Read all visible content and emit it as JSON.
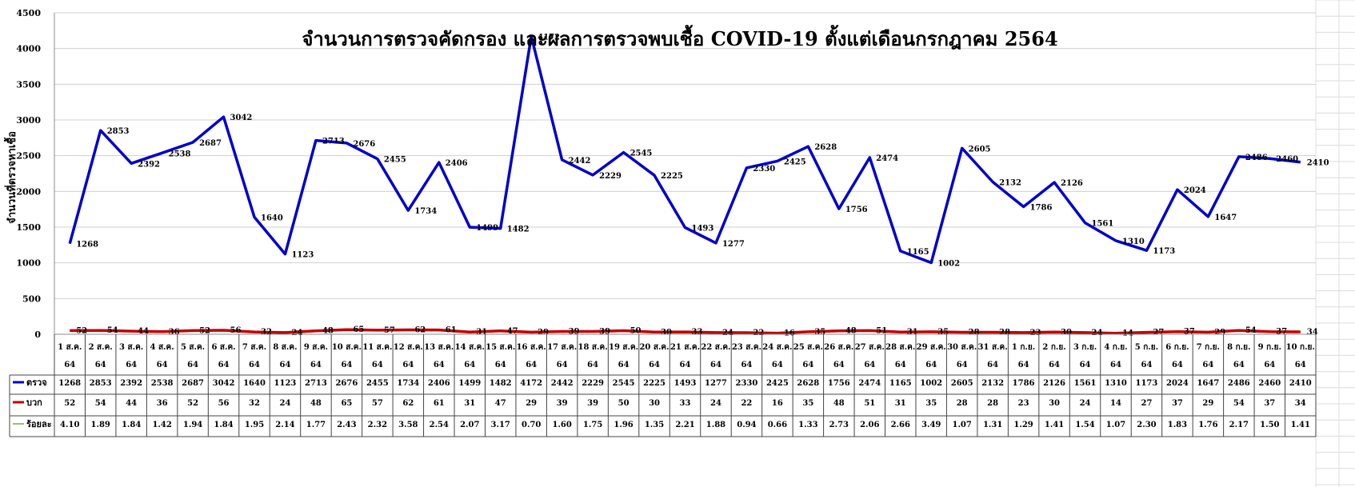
{
  "chart_data": {
    "type": "line",
    "title": "จำนวนการตรวจคัดกรอง และผลการตรวจพบเชื้อ COVID-19 ตั้งแต่เดือนกรกฎาคม 2564",
    "ylabel": "จำนวนที่ตรวจหาเชื้อ",
    "ylim": [
      0,
      4500
    ],
    "yticks": [
      0,
      500,
      1000,
      1500,
      2000,
      2500,
      3000,
      3500,
      4000,
      4500
    ],
    "grid": true,
    "legend": "data-table",
    "categories": [
      [
        "1 ส.ค.",
        "64"
      ],
      [
        "2 ส.ค.",
        "64"
      ],
      [
        "3 ส.ค.",
        "64"
      ],
      [
        "4 ส.ค.",
        "64"
      ],
      [
        "5 ส.ค.",
        "64"
      ],
      [
        "6 ส.ค.",
        "64"
      ],
      [
        "7 ส.ค.",
        "64"
      ],
      [
        "8 ส.ค.",
        "64"
      ],
      [
        "9 ส.ค.",
        "64"
      ],
      [
        "10 ส.ค.",
        "64"
      ],
      [
        "11 ส.ค.",
        "64"
      ],
      [
        "12 ส.ค.",
        "64"
      ],
      [
        "13 ส.ค.",
        "64"
      ],
      [
        "14 ส.ค.",
        "64"
      ],
      [
        "15 ส.ค.",
        "64"
      ],
      [
        "16 ส.ค.",
        "64"
      ],
      [
        "17 ส.ค.",
        "64"
      ],
      [
        "18 ส.ค.",
        "64"
      ],
      [
        "19 ส.ค.",
        "64"
      ],
      [
        "20 ส.ค.",
        "64"
      ],
      [
        "21 ส.ค.",
        "64"
      ],
      [
        "22 ส.ค.",
        "64"
      ],
      [
        "23 ส.ค.",
        "64"
      ],
      [
        "24 ส.ค.",
        "64"
      ],
      [
        "25 ส.ค.",
        "64"
      ],
      [
        "26 ส.ค.",
        "64"
      ],
      [
        "27 ส.ค.",
        "64"
      ],
      [
        "28 ส.ค.",
        "64"
      ],
      [
        "29 ส.ค.",
        "64"
      ],
      [
        "30 ส.ค.",
        "64"
      ],
      [
        "31 ส.ค.",
        "64"
      ],
      [
        "1 ก.ย.",
        "64"
      ],
      [
        "2 ก.ย.",
        "64"
      ],
      [
        "3 ก.ย.",
        "64"
      ],
      [
        "4 ก.ย.",
        "64"
      ],
      [
        "5 ก.ย.",
        "64"
      ],
      [
        "6 ก.ย.",
        "64"
      ],
      [
        "7 ก.ย.",
        "64"
      ],
      [
        "8 ก.ย.",
        "64"
      ],
      [
        "9 ก.ย.",
        "64"
      ],
      [
        "10 ก.ย.",
        "64"
      ]
    ],
    "series": [
      {
        "name": "ตรวจ",
        "color": "#0000cc",
        "plotted": true,
        "values": [
          1268,
          2853,
          2392,
          2538,
          2687,
          3042,
          1640,
          1123,
          2713,
          2676,
          2455,
          1734,
          2406,
          1499,
          1482,
          4172,
          2442,
          2229,
          2545,
          2225,
          1493,
          1277,
          2330,
          2425,
          2628,
          1756,
          2474,
          1165,
          1002,
          2605,
          2132,
          1786,
          2126,
          1561,
          1310,
          1173,
          2024,
          1647,
          2486,
          2460,
          2410
        ]
      },
      {
        "name": "บวก",
        "color": "#c00000",
        "plotted": true,
        "values": [
          52,
          54,
          44,
          36,
          52,
          56,
          32,
          24,
          48,
          65,
          57,
          62,
          61,
          31,
          47,
          29,
          39,
          39,
          50,
          30,
          33,
          24,
          22,
          16,
          35,
          48,
          51,
          31,
          35,
          28,
          28,
          23,
          30,
          24,
          14,
          27,
          37,
          29,
          54,
          37,
          34
        ]
      },
      {
        "name": "ร้อยละ",
        "color": "#70ad47",
        "plotted": false,
        "values": [
          "4.10",
          "1.89",
          "1.84",
          "1.42",
          "1.94",
          "1.84",
          "1.95",
          "2.14",
          "1.77",
          "2.43",
          "2.32",
          "3.58",
          "2.54",
          "2.07",
          "3.17",
          "0.70",
          "1.60",
          "1.75",
          "1.96",
          "1.35",
          "2.21",
          "1.88",
          "0.94",
          "0.66",
          "1.33",
          "2.73",
          "2.06",
          "2.66",
          "3.49",
          "1.07",
          "1.31",
          "1.29",
          "1.41",
          "1.54",
          "1.07",
          "2.30",
          "1.83",
          "1.76",
          "2.17",
          "1.50",
          "1.41"
        ]
      }
    ]
  }
}
